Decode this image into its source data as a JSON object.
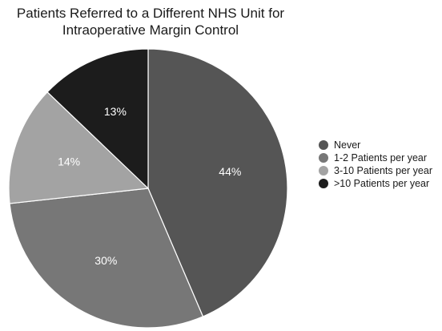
{
  "chart_data": {
    "type": "pie",
    "title": "Patients Referred to a Different NHS Unit for Intraoperative Margin Control",
    "title_lines": [
      "Patients Referred to a Different NHS Unit for",
      "Intraoperative Margin Control"
    ],
    "slices": [
      {
        "name": "Never",
        "value": 44,
        "label": "44%",
        "color": "#555555",
        "label_color": "#ffffff"
      },
      {
        "name": "1-2 Patients per year",
        "value": 30,
        "label": "30%",
        "color": "#777777",
        "label_color": "#ffffff"
      },
      {
        "name": "3-10 Patients per year",
        "value": 14,
        "label": "14%",
        "color": "#a3a3a3",
        "label_color": "#ffffff"
      },
      {
        "name": ">10 Patients per year",
        "value": 13,
        "label": "13%",
        "color": "#1c1c1c",
        "label_color": "#ffffff"
      }
    ],
    "start_angle_deg": 0,
    "direction": "clockwise",
    "legend_position": "right"
  }
}
